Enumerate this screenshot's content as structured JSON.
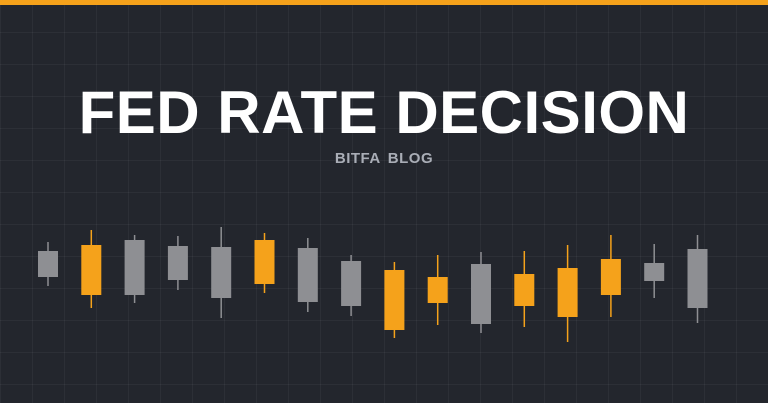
{
  "banner": {
    "title": "FED RATE DECISION",
    "subtitle": "BITFA  BLOG"
  },
  "colors": {
    "background": "#23262d",
    "accent": "#f5a21b",
    "neutral": "#8e8f93",
    "title": "#ffffff",
    "subtitle": "#a9adb6"
  },
  "candles": [
    {
      "style": "gray",
      "wick": [
        242,
        286
      ],
      "body": [
        251,
        277
      ]
    },
    {
      "style": "orange",
      "wick": [
        230,
        308
      ],
      "body": [
        245,
        295
      ]
    },
    {
      "style": "gray",
      "wick": [
        235,
        303
      ],
      "body": [
        240,
        295
      ]
    },
    {
      "style": "gray",
      "wick": [
        236,
        290
      ],
      "body": [
        246,
        280
      ]
    },
    {
      "style": "gray",
      "wick": [
        227,
        318
      ],
      "body": [
        247,
        298
      ]
    },
    {
      "style": "orange",
      "wick": [
        233,
        293
      ],
      "body": [
        240,
        284
      ]
    },
    {
      "style": "gray",
      "wick": [
        238,
        312
      ],
      "body": [
        248,
        302
      ]
    },
    {
      "style": "gray",
      "wick": [
        255,
        316
      ],
      "body": [
        261,
        306
      ]
    },
    {
      "style": "orange",
      "wick": [
        262,
        338
      ],
      "body": [
        270,
        330
      ]
    },
    {
      "style": "orange",
      "wick": [
        255,
        325
      ],
      "body": [
        277,
        303
      ]
    },
    {
      "style": "gray",
      "wick": [
        252,
        333
      ],
      "body": [
        264,
        324
      ]
    },
    {
      "style": "orange",
      "wick": [
        251,
        327
      ],
      "body": [
        274,
        306
      ]
    },
    {
      "style": "orange",
      "wick": [
        245,
        342
      ],
      "body": [
        268,
        317
      ]
    },
    {
      "style": "orange",
      "wick": [
        235,
        317
      ],
      "body": [
        259,
        295
      ]
    },
    {
      "style": "gray",
      "wick": [
        244,
        298
      ],
      "body": [
        263,
        281
      ]
    },
    {
      "style": "gray",
      "wick": [
        235,
        323
      ],
      "body": [
        249,
        308
      ]
    }
  ]
}
